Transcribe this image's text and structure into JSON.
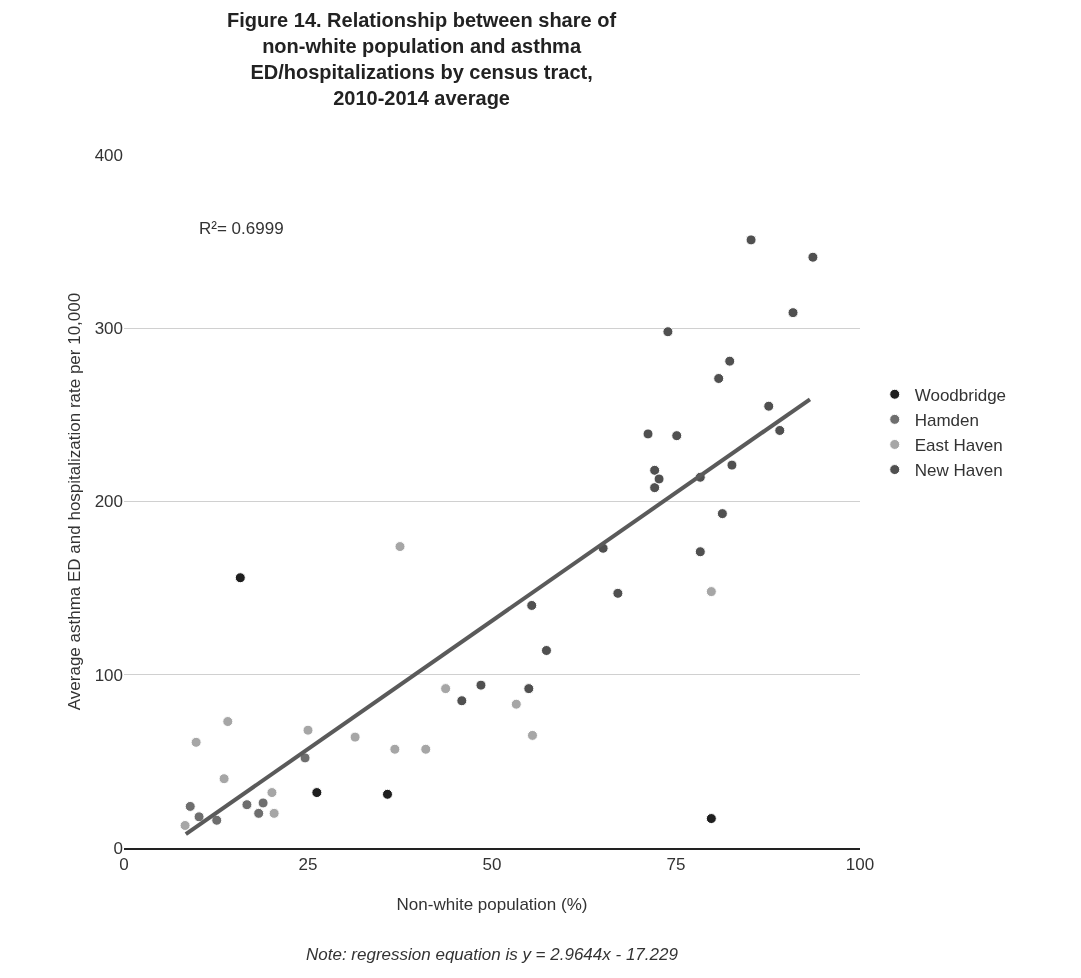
{
  "chart_data": {
    "type": "scatter",
    "title": "Figure 14. Relationship between share of non-white population and asthma ED/hospitalizations by census tract, 2010-2014 average",
    "xlabel": "Non-white population (%)",
    "ylabel": "Average asthma ED and hospitalization rate per 10,000",
    "xlim": [
      0,
      100
    ],
    "xticks": [
      0,
      25,
      50,
      75,
      100
    ],
    "ylim": [
      0,
      400
    ],
    "yticks": [
      0,
      100,
      200,
      300,
      400
    ],
    "grid": "y",
    "legend": "right",
    "marker": "circle",
    "annotations": [
      "R²= 0.6999",
      "Note: regression equation is y = 2.9644x - 17.229"
    ],
    "series": [
      {
        "name": "Woodbridge",
        "color": "#1f1f1f",
        "x": [
          15.8,
          26.2,
          35.8,
          79.8
        ],
        "values": [
          156,
          32,
          31,
          17
        ]
      },
      {
        "name": "Hamden",
        "color": "#6e6e6e",
        "x": [
          9.0,
          10.2,
          16.7,
          12.6,
          18.3,
          18.9,
          24.6
        ],
        "values": [
          24,
          18,
          25,
          16,
          20,
          26,
          52
        ]
      },
      {
        "name": "East Haven",
        "color": "#a6a6a6",
        "x": [
          8.3,
          9.8,
          14.1,
          13.6,
          20.1,
          20.4,
          25.0,
          31.4,
          36.8,
          37.5,
          41.0,
          43.7,
          53.3,
          55.5,
          79.8
        ],
        "values": [
          13,
          61,
          73,
          40,
          32,
          20,
          68,
          64,
          57,
          174,
          57,
          92,
          83,
          65,
          148
        ]
      },
      {
        "name": "New Haven",
        "color": "#505050",
        "x": [
          45.9,
          48.5,
          55.0,
          55.4,
          57.4,
          65.1,
          67.1,
          71.2,
          72.1,
          72.1,
          72.7,
          73.9,
          75.1,
          78.3,
          78.3,
          80.8,
          81.3,
          82.3,
          82.6,
          85.2,
          87.6,
          89.1,
          90.9,
          93.6
        ],
        "values": [
          85,
          94,
          92,
          140,
          114,
          173,
          147,
          239,
          218,
          208,
          213,
          298,
          238,
          214,
          171,
          271,
          193,
          281,
          221,
          351,
          255,
          241,
          309,
          341
        ]
      },
      {
        "type": "line",
        "marker": "none",
        "color": "#5a5a5a",
        "x": [
          8.4,
          93.2
        ],
        "values": [
          8,
          259
        ]
      }
    ]
  }
}
